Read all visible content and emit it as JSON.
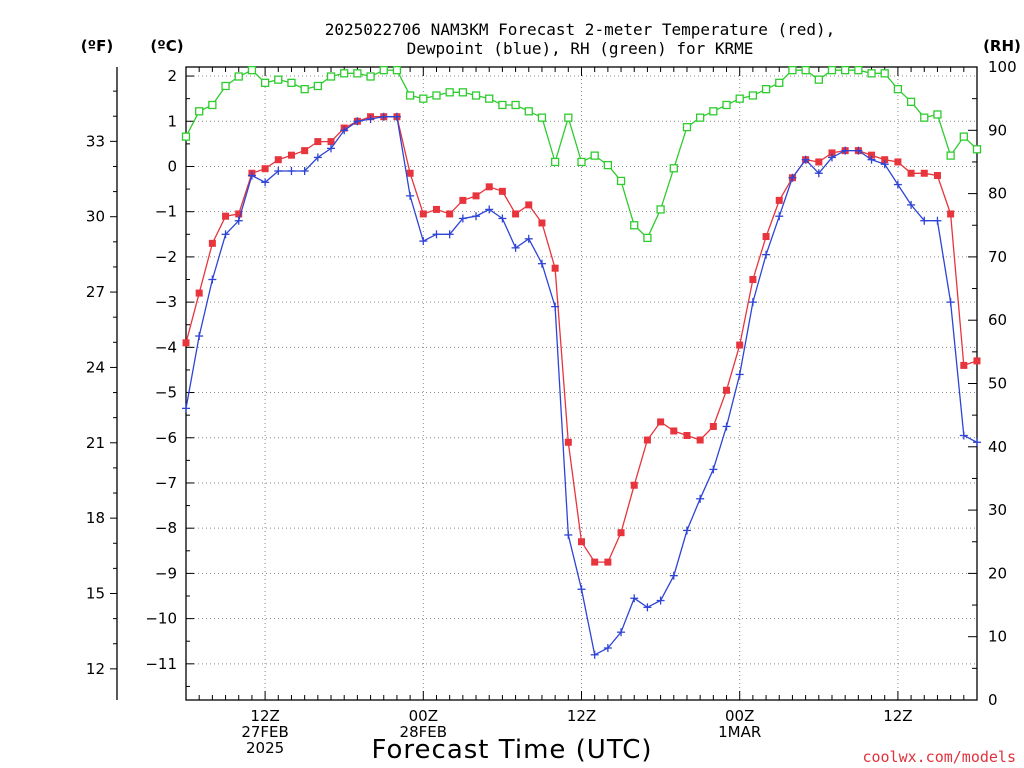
{
  "chart_data": {
    "type": "line",
    "title_line1": "2025022706 NAM3KM Forecast 2-meter Temperature (red),",
    "title_line2": "Dewpoint (blue), RH (green) for KRME",
    "units": {
      "fahrenheit": "(ºF)",
      "celsius": "(ºC)",
      "rh": "(RH)"
    },
    "xlabel": "Forecast Time (UTC)",
    "credit": "coolwx.com/models",
    "grid": true,
    "y_celsius_ticks": [
      2,
      1,
      0,
      -1,
      -2,
      -3,
      -4,
      -5,
      -6,
      -7,
      -8,
      -9,
      -10,
      -11
    ],
    "y_celsius_tick_labels": [
      "2",
      "1",
      "0",
      "−1",
      "−2",
      "−3",
      "−4",
      "−5",
      "−6",
      "−7",
      "−8",
      "−9",
      "−10",
      "−11"
    ],
    "y_fahrenheit_ticks": [
      33,
      30,
      27,
      24,
      21,
      18,
      15,
      12
    ],
    "y_rh_ticks": [
      100,
      90,
      80,
      70,
      60,
      50,
      40,
      30,
      20,
      10,
      0
    ],
    "ylim_celsius": [
      -11.8,
      2.2
    ],
    "ylim_rh": [
      0,
      100
    ],
    "xlim_hours": [
      6,
      66
    ],
    "x_ticks": [
      {
        "hour": 12,
        "lines": [
          "12Z",
          "27FEB",
          "2025"
        ]
      },
      {
        "hour": 24,
        "lines": [
          "00Z",
          "28FEB"
        ]
      },
      {
        "hour": 36,
        "lines": [
          "12Z"
        ]
      },
      {
        "hour": 48,
        "lines": [
          "00Z",
          "1MAR"
        ]
      },
      {
        "hour": 60,
        "lines": [
          "12Z"
        ]
      }
    ],
    "series": [
      {
        "name": "Temperature",
        "color": "#e8343c",
        "marker": "filled-square",
        "axis": "celsius",
        "x": [
          6,
          7,
          8,
          9,
          10,
          11,
          12,
          13,
          14,
          15,
          16,
          17,
          18,
          19,
          20,
          21,
          22,
          23,
          24,
          25,
          26,
          27,
          28,
          29,
          30,
          31,
          32,
          33,
          34,
          35,
          36,
          37,
          38,
          39,
          40,
          41,
          42,
          43,
          44,
          45,
          46,
          47,
          48,
          49,
          50,
          51,
          52,
          53,
          54,
          55,
          56,
          57,
          58,
          59,
          60,
          61,
          62,
          63,
          64,
          65,
          66
        ],
        "values": [
          -3.9,
          -2.8,
          -1.7,
          -1.1,
          -1.05,
          -0.15,
          -0.05,
          0.15,
          0.25,
          0.35,
          0.55,
          0.55,
          0.85,
          1.0,
          1.1,
          1.1,
          1.1,
          -0.15,
          -1.05,
          -0.95,
          -1.05,
          -0.75,
          -0.65,
          -0.45,
          -0.55,
          -1.05,
          -0.85,
          -1.25,
          -2.25,
          -6.1,
          -8.3,
          -8.75,
          -8.75,
          -8.1,
          -7.05,
          -6.05,
          -5.65,
          -5.85,
          -5.95,
          -6.05,
          -5.75,
          -4.95,
          -3.95,
          -2.5,
          -1.55,
          -0.75,
          -0.25,
          0.15,
          0.1,
          0.3,
          0.35,
          0.35,
          0.25,
          0.15,
          0.1,
          -0.15,
          -0.15,
          -0.2,
          -1.05,
          -4.4,
          -4.3
        ]
      },
      {
        "name": "Dewpoint",
        "color": "#2e44d6",
        "marker": "plus",
        "axis": "celsius",
        "x": [
          6,
          7,
          8,
          9,
          10,
          11,
          12,
          13,
          14,
          15,
          16,
          17,
          18,
          19,
          20,
          21,
          22,
          23,
          24,
          25,
          26,
          27,
          28,
          29,
          30,
          31,
          32,
          33,
          34,
          35,
          36,
          37,
          38,
          39,
          40,
          41,
          42,
          43,
          44,
          45,
          46,
          47,
          48,
          49,
          50,
          51,
          52,
          53,
          54,
          55,
          56,
          57,
          58,
          59,
          60,
          61,
          62,
          63,
          64,
          65,
          66
        ],
        "values": [
          -5.35,
          -3.75,
          -2.5,
          -1.5,
          -1.2,
          -0.2,
          -0.35,
          -0.1,
          -0.1,
          -0.1,
          0.2,
          0.4,
          0.8,
          1.0,
          1.05,
          1.1,
          1.1,
          -0.65,
          -1.65,
          -1.5,
          -1.5,
          -1.15,
          -1.1,
          -0.95,
          -1.15,
          -1.8,
          -1.6,
          -2.15,
          -3.1,
          -8.15,
          -9.35,
          -10.8,
          -10.65,
          -10.3,
          -9.55,
          -9.75,
          -9.6,
          -9.05,
          -8.05,
          -7.35,
          -6.7,
          -5.75,
          -4.6,
          -3.0,
          -1.95,
          -1.1,
          -0.25,
          0.15,
          -0.15,
          0.2,
          0.35,
          0.35,
          0.15,
          0.05,
          -0.4,
          -0.85,
          -1.2,
          -1.2,
          -3.0,
          -5.95,
          -6.1
        ]
      },
      {
        "name": "RH",
        "color": "#2ecc2e",
        "marker": "open-square",
        "axis": "rh",
        "x": [
          6,
          7,
          8,
          9,
          10,
          11,
          12,
          13,
          14,
          15,
          16,
          17,
          18,
          19,
          20,
          21,
          22,
          23,
          24,
          25,
          26,
          27,
          28,
          29,
          30,
          31,
          32,
          33,
          34,
          35,
          36,
          37,
          38,
          39,
          40,
          41,
          42,
          43,
          44,
          45,
          46,
          47,
          48,
          49,
          50,
          51,
          52,
          53,
          54,
          55,
          56,
          57,
          58,
          59,
          60,
          61,
          62,
          63,
          64,
          65,
          66
        ],
        "values": [
          89,
          93,
          94,
          97,
          98.5,
          99.5,
          97.5,
          98,
          97.5,
          96.5,
          97,
          98.5,
          99,
          99,
          98.5,
          99.5,
          99.5,
          95.5,
          95,
          95.5,
          96,
          96,
          95.5,
          95,
          94,
          94,
          93,
          92,
          85,
          92,
          85,
          86,
          84.5,
          82,
          75,
          73,
          77.5,
          84,
          90.5,
          92,
          93,
          94,
          95,
          95.5,
          96.5,
          97.5,
          99.5,
          99.5,
          98,
          99.5,
          99.5,
          99.5,
          99,
          99,
          96.5,
          94.5,
          92,
          92.5,
          86,
          89,
          87
        ]
      }
    ]
  }
}
